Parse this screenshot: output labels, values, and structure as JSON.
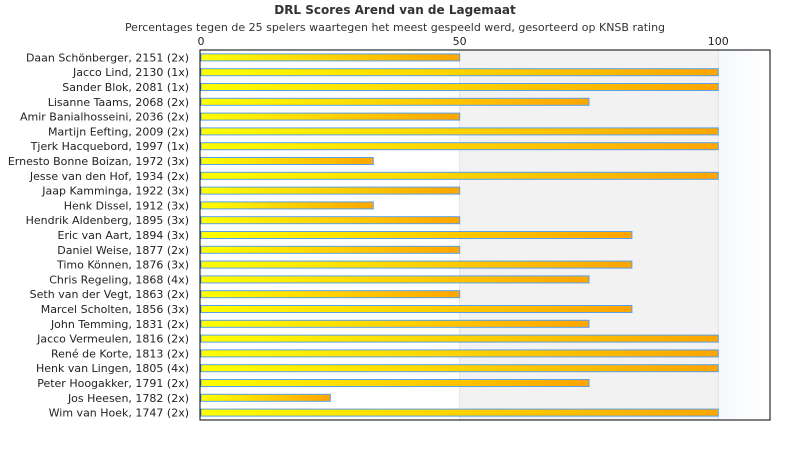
{
  "chart_data": {
    "type": "bar",
    "orientation": "horizontal",
    "title": "DRL Scores Arend van de Lagemaat",
    "subtitle": "Percentages tegen de 25 spelers waartegen het meest gespeeld werd, gesorteerd op KNSB rating",
    "xlim": [
      0,
      110
    ],
    "xticks": [
      "0",
      "50",
      "100"
    ],
    "xtick_values": [
      0,
      50,
      100
    ],
    "categories": [
      "Daan Schönberger, 2151 (2x)",
      "Jacco Lind, 2130 (1x)",
      "Sander Blok, 2081 (1x)",
      "Lisanne Taams, 2068 (2x)",
      "Amir Banialhosseini, 2036 (2x)",
      "Martijn Eefting, 2009 (2x)",
      "Tjerk Hacquebord, 1997 (1x)",
      "Ernesto Bonne Boizan, 1972 (3x)",
      "Jesse van den Hof, 1934 (2x)",
      "Jaap Kamminga, 1922 (3x)",
      "Henk Dissel, 1912 (3x)",
      "Hendrik Aldenberg, 1895 (3x)",
      "Eric van Aart, 1894 (3x)",
      "Daniel Weise, 1877 (2x)",
      "Timo Können, 1876 (3x)",
      "Chris Regeling, 1868 (4x)",
      "Seth van der Vegt, 1863 (2x)",
      "Marcel Scholten, 1856 (3x)",
      "John Temming, 1831 (2x)",
      "Jacco Vermeulen, 1816 (2x)",
      "René de Korte, 1813 (2x)",
      "Henk van Lingen, 1805 (4x)",
      "Peter Hoogakker, 1791 (2x)",
      "Jos Heesen, 1782 (2x)",
      "Wim van Hoek, 1747 (2x)"
    ],
    "values": [
      50,
      100,
      100,
      75,
      50,
      100,
      100,
      33.3,
      100,
      50,
      33.3,
      50,
      83.3,
      50,
      83.3,
      75,
      50,
      83.3,
      75,
      100,
      100,
      100,
      75,
      25,
      100
    ],
    "colors": {
      "bar_start": "#ffff00",
      "bar_end": "#ffa500",
      "bar_border": "#5aa0e6",
      "band_mid": "#f2f2f2",
      "band_high": "#f5f9fd"
    }
  }
}
